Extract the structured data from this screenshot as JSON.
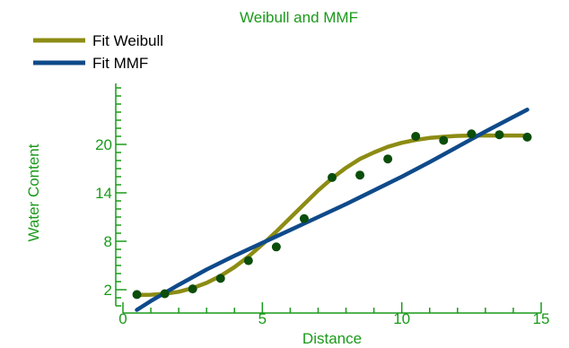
{
  "chart_data": {
    "type": "scatter",
    "title": "Weibull and MMF",
    "xlabel": "Distance",
    "ylabel": "Water Content",
    "xlim": [
      0,
      15
    ],
    "ylim": [
      0,
      27
    ],
    "x_ticks": [
      0,
      5,
      10,
      15
    ],
    "y_ticks": [
      2,
      8,
      14,
      20
    ],
    "grid": false,
    "legend_position": "top-left",
    "points": {
      "color": "#0b4d0b",
      "x": [
        0.5,
        1.5,
        2.5,
        3.5,
        4.5,
        5.5,
        6.5,
        7.5,
        8.5,
        9.5,
        10.5,
        11.5,
        12.5,
        13.5,
        14.5
      ],
      "y": [
        1.4,
        1.5,
        2.1,
        3.4,
        5.6,
        7.3,
        10.8,
        15.9,
        16.2,
        18.2,
        21.0,
        20.5,
        21.3,
        21.2,
        20.9
      ]
    },
    "series": [
      {
        "name": "Fit Weibull",
        "color": "#8c8c14",
        "x": [
          0.5,
          1.0,
          1.5,
          2.0,
          2.5,
          3.0,
          3.5,
          4.0,
          4.5,
          5.0,
          5.5,
          6.0,
          6.5,
          7.0,
          7.5,
          8.0,
          8.5,
          9.0,
          9.5,
          10.0,
          10.5,
          11.0,
          11.5,
          12.0,
          12.5,
          13.0,
          13.5,
          14.0,
          14.5
        ],
        "y": [
          1.35,
          1.38,
          1.5,
          1.75,
          2.2,
          2.85,
          3.7,
          4.8,
          6.1,
          7.6,
          9.2,
          10.9,
          12.6,
          14.3,
          15.8,
          17.1,
          18.2,
          19.0,
          19.7,
          20.2,
          20.55,
          20.8,
          20.95,
          21.05,
          21.1,
          21.1,
          21.1,
          21.1,
          21.1
        ]
      },
      {
        "name": "Fit MMF",
        "color": "#0f4a8a",
        "x": [
          0.5,
          1.0,
          2.0,
          3.0,
          4.0,
          5.0,
          6.0,
          7.0,
          8.0,
          9.0,
          10.0,
          11.0,
          12.0,
          13.0,
          14.0,
          14.5
        ],
        "y": [
          -0.5,
          0.6,
          2.6,
          4.5,
          6.2,
          7.8,
          9.4,
          11.0,
          12.6,
          14.3,
          16.0,
          17.8,
          19.7,
          21.6,
          23.4,
          24.3
        ]
      }
    ]
  }
}
